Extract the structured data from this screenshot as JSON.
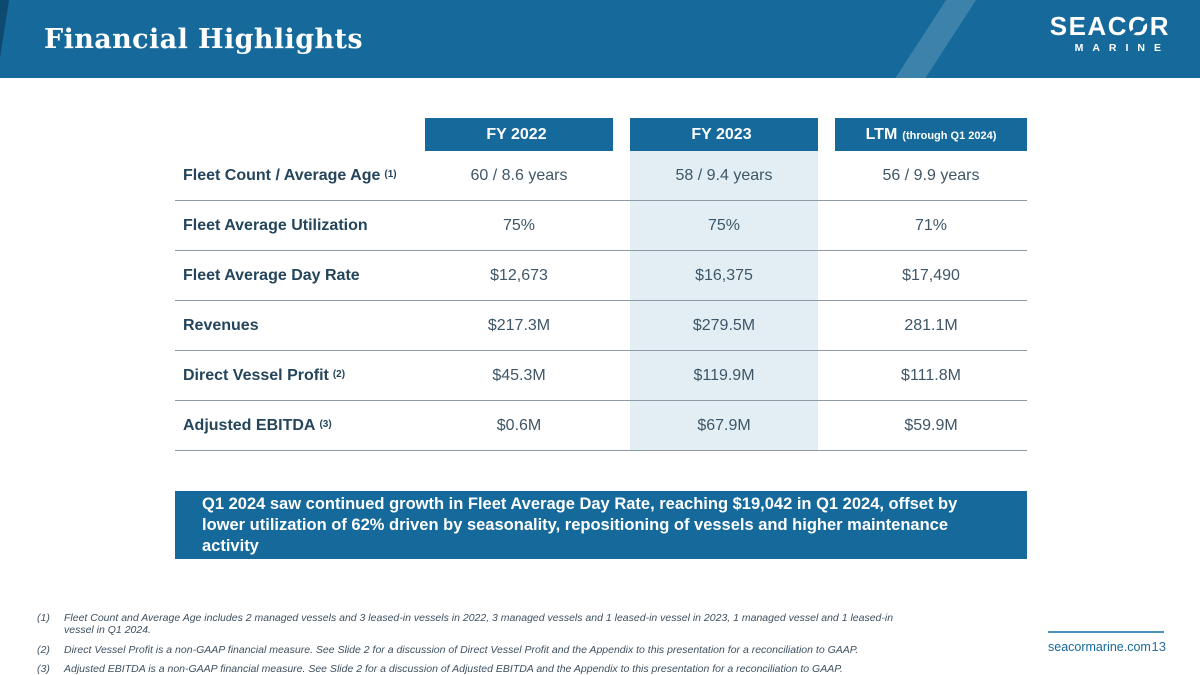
{
  "header": {
    "title": "Financial Highlights",
    "logo_primary_left": "SEAC",
    "logo_primary_o": "O",
    "logo_primary_right": "R",
    "logo_secondary": "MARINE"
  },
  "table": {
    "columns": [
      {
        "label": "FY 2022",
        "sub": ""
      },
      {
        "label": "FY 2023",
        "sub": ""
      },
      {
        "label": "LTM",
        "sub": "(through Q1 2024)"
      }
    ],
    "rows": [
      {
        "label": "Fleet Count / Average Age",
        "sup": "(1)",
        "values": [
          "60 / 8.6 years",
          "58 / 9.4 years",
          "56 / 9.9 years"
        ]
      },
      {
        "label": "Fleet Average Utilization",
        "sup": "",
        "values": [
          "75%",
          "75%",
          "71%"
        ]
      },
      {
        "label": "Fleet Average Day Rate",
        "sup": "",
        "values": [
          "$12,673",
          "$16,375",
          "$17,490"
        ]
      },
      {
        "label": "Revenues",
        "sup": "",
        "values": [
          "$217.3M",
          "$279.5M",
          "281.1M"
        ]
      },
      {
        "label": "Direct Vessel Profit",
        "sup": "(2)",
        "values": [
          "$45.3M",
          "$119.9M",
          "$111.8M"
        ]
      },
      {
        "label": "Adjusted EBITDA",
        "sup": "(3)",
        "values": [
          "$0.6M",
          "$67.9M",
          "$59.9M"
        ]
      }
    ]
  },
  "callout": {
    "text": "Q1 2024 saw continued growth in Fleet Average Day Rate, reaching $19,042 in Q1 2024, offset by lower utilization of 62% driven by seasonality, repositioning of vessels and higher maintenance activity"
  },
  "footnotes": [
    {
      "num": "(1)",
      "text": "Fleet Count and Average Age includes 2 managed vessels and 3 leased-in vessels in 2022, 3 managed vessels and 1 leased-in vessel in 2023, 1 managed vessel and 1 leased-in vessel in Q1 2024."
    },
    {
      "num": "(2)",
      "text": "Direct Vessel Profit is a non-GAAP financial measure. See Slide 2 for a discussion of Direct Vessel Profit and the Appendix to this presentation for a reconciliation to GAAP."
    },
    {
      "num": "(3)",
      "text": "Adjusted EBITDA is a non-GAAP financial measure. See Slide 2 for a discussion of Adjusted EBITDA and the Appendix to this presentation for a reconciliation to GAAP."
    }
  ],
  "footer": {
    "website": "seacormarine.com",
    "page_number": "13"
  },
  "colors": {
    "accent": "#15699B",
    "accent-dark": "#0E4A6F",
    "col-highlight": "#E2EEF4",
    "rule": "#8D9AA5",
    "label": "#24455B",
    "value": "#3E5668",
    "footnote": "#3E5060",
    "footer-line": "#4C93BC"
  }
}
